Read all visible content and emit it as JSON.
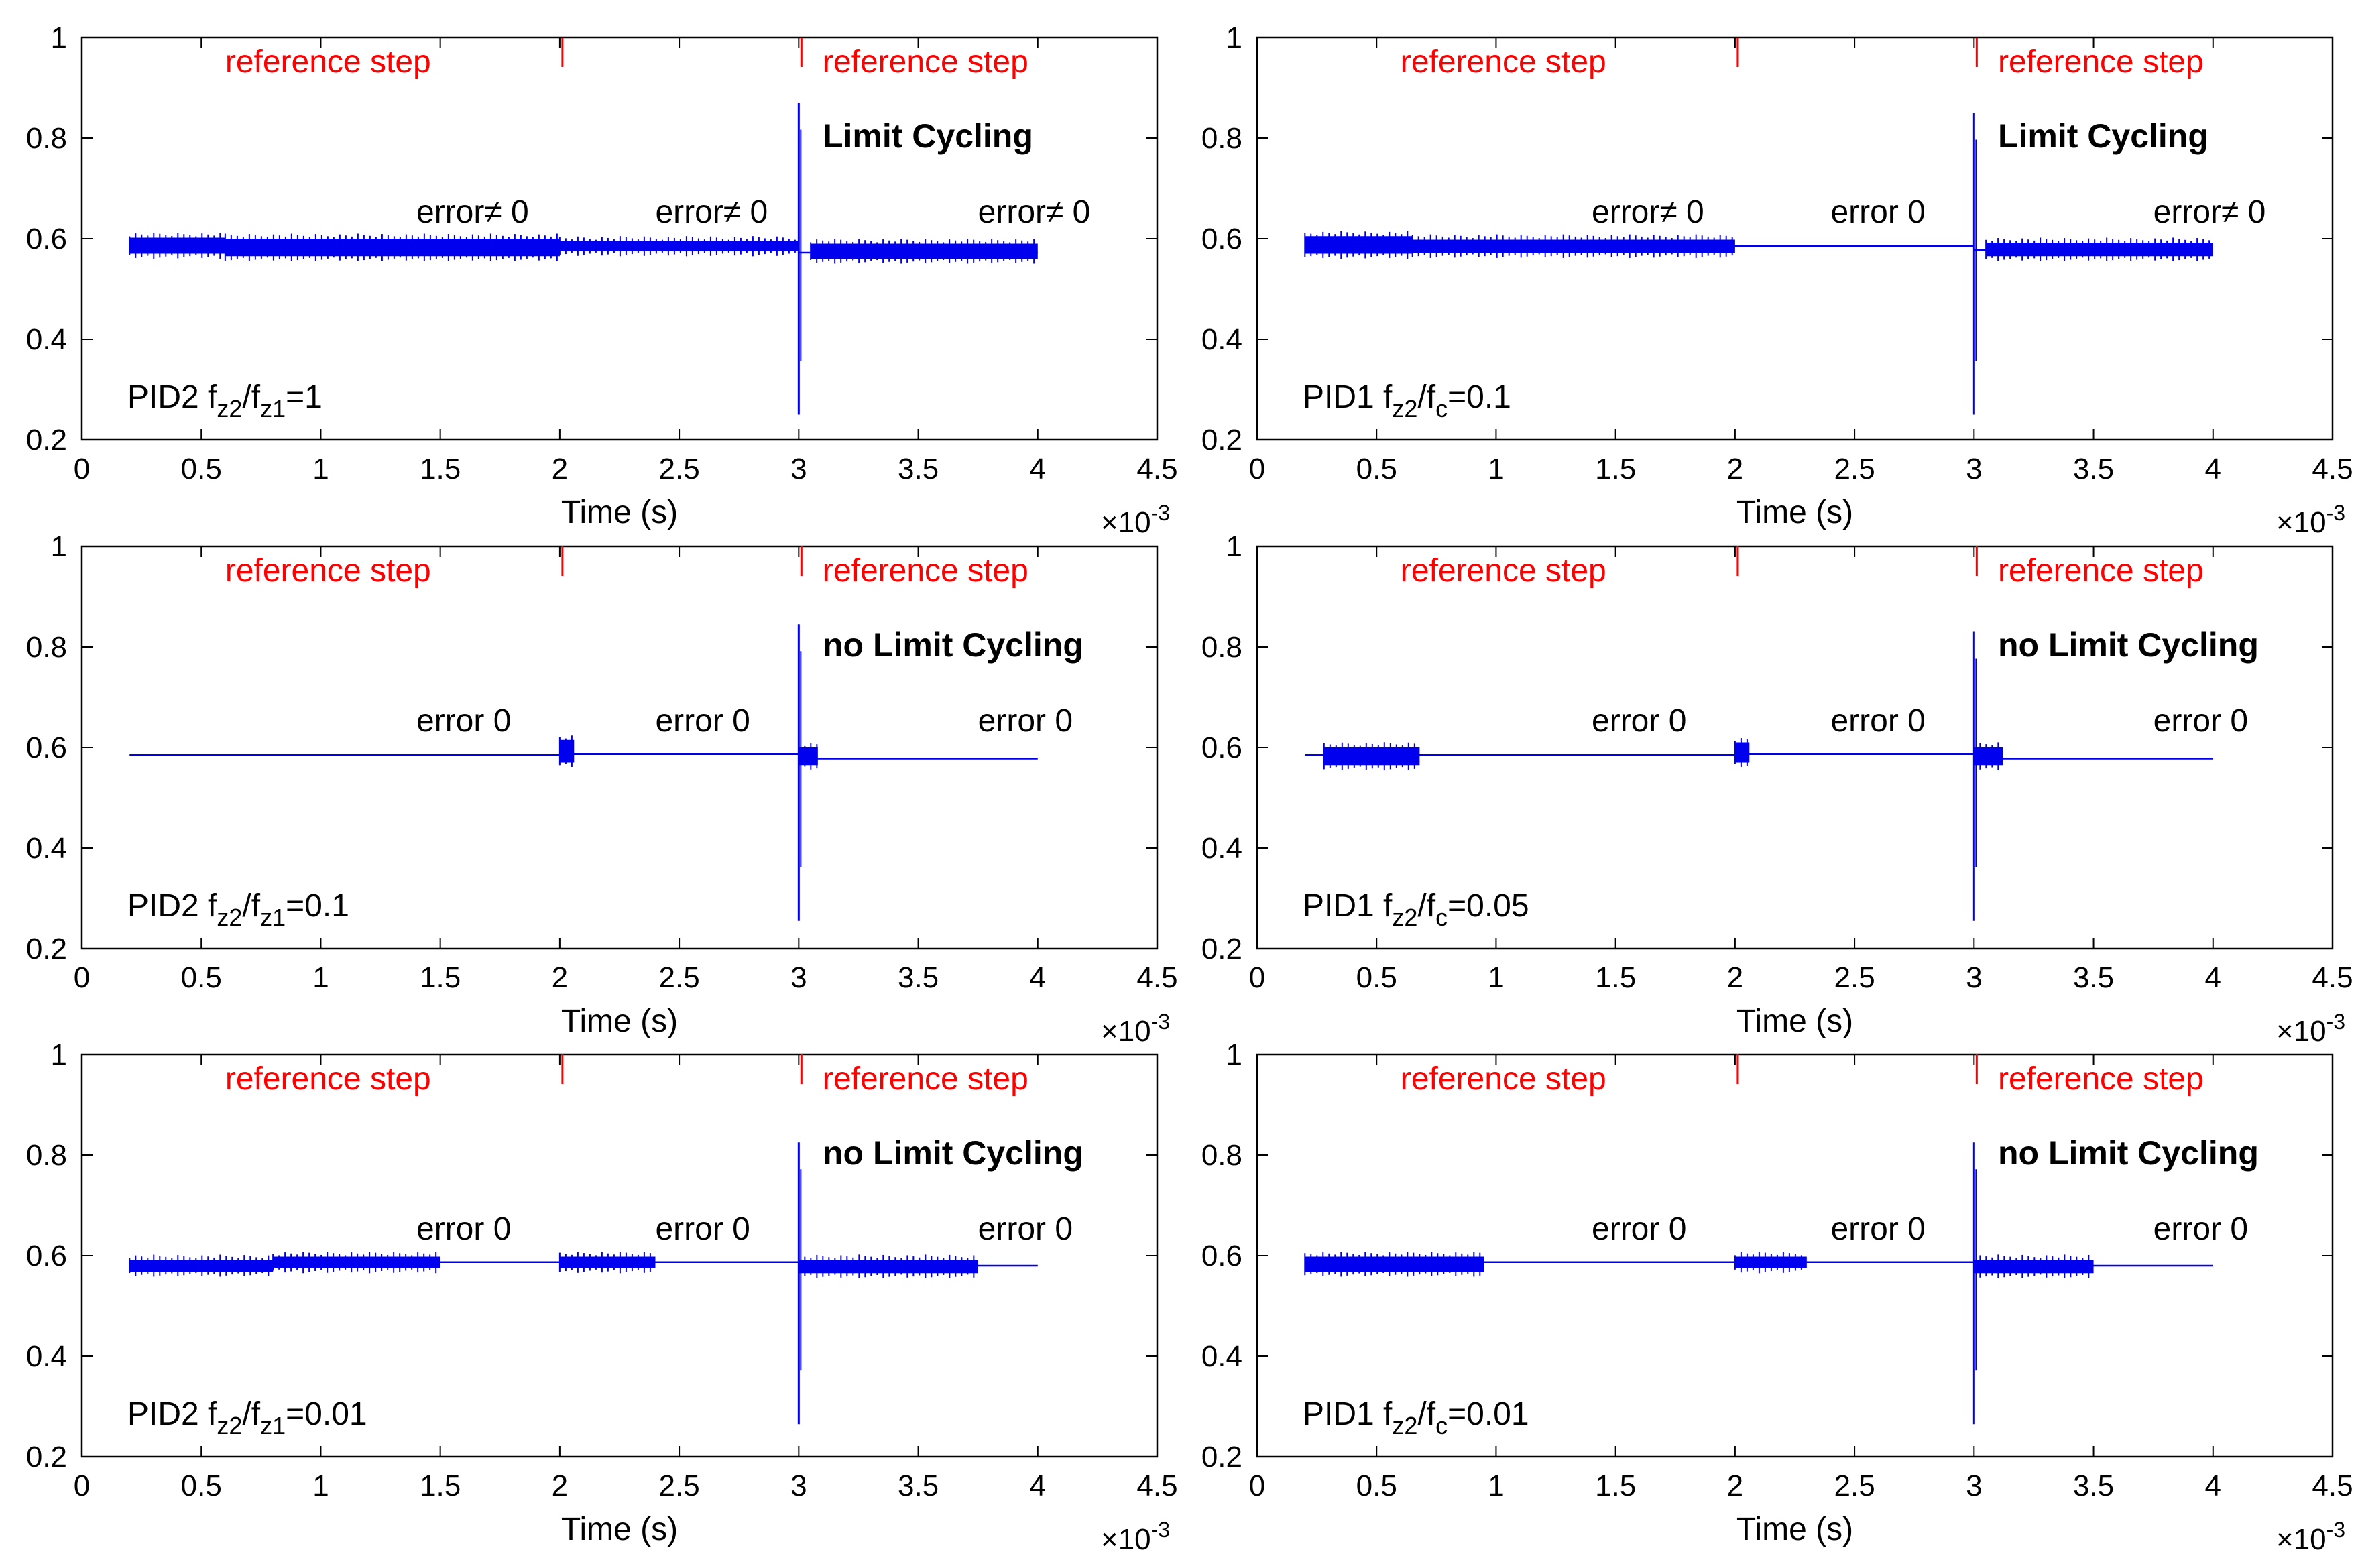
{
  "chart_data": [
    {
      "type": "line",
      "label": {
        "prefix": "PID2 f",
        "sub1": "z2",
        "mid": "/f",
        "sub2": "z1",
        "suffix": "=1"
      },
      "x_range": [
        0.2,
        4.0
      ],
      "baseline": [
        0.585,
        0.585,
        0.572
      ],
      "band": [
        {
          "x": [
            0.2,
            0.6
          ],
          "lo": 0.57,
          "hi": 0.602
        },
        {
          "x": [
            0.6,
            2.0
          ],
          "lo": 0.565,
          "hi": 0.6
        },
        {
          "x": [
            2.0,
            3.0
          ],
          "lo": 0.575,
          "hi": 0.595
        },
        {
          "x": [
            3.05,
            4.0
          ],
          "lo": 0.56,
          "hi": 0.59
        }
      ],
      "spike": {
        "x": 3.0,
        "max": 0.87,
        "min": 0.25
      },
      "errors": [
        "error≠ 0",
        "error≠ 0",
        "error≠ 0"
      ],
      "cycling": "Limit Cycling"
    },
    {
      "type": "line",
      "label": {
        "prefix": "PID1 f",
        "sub1": "z2",
        "mid": "/f",
        "sub2": "c",
        "suffix": "=0.1"
      },
      "x_range": [
        0.2,
        4.0
      ],
      "baseline": [
        0.585,
        0.585,
        0.577
      ],
      "band": [
        {
          "x": [
            0.2,
            0.65
          ],
          "lo": 0.57,
          "hi": 0.605
        },
        {
          "x": [
            0.65,
            2.0
          ],
          "lo": 0.572,
          "hi": 0.598
        },
        {
          "x": [
            3.05,
            4.0
          ],
          "lo": 0.565,
          "hi": 0.592
        }
      ],
      "spike": {
        "x": 3.0,
        "max": 0.85,
        "min": 0.25
      },
      "errors": [
        "error≠ 0",
        "error 0",
        "error≠ 0"
      ],
      "cycling": "Limit Cycling"
    },
    {
      "type": "line",
      "label": {
        "prefix": "PID2 f",
        "sub1": "z2",
        "mid": "/f",
        "sub2": "z1",
        "suffix": "=0.1"
      },
      "x_range": [
        0.2,
        4.0
      ],
      "baseline": [
        0.585,
        0.587,
        0.578
      ],
      "band": [
        {
          "x": [
            2.0,
            2.06
          ],
          "lo": 0.57,
          "hi": 0.615
        },
        {
          "x": [
            3.0,
            3.08
          ],
          "lo": 0.565,
          "hi": 0.6
        }
      ],
      "spike": {
        "x": 3.0,
        "max": 0.845,
        "min": 0.255
      },
      "errors": [
        "error 0",
        "error 0",
        "error 0"
      ],
      "cycling": "no Limit Cycling"
    },
    {
      "type": "line",
      "label": {
        "prefix": "PID1 f",
        "sub1": "z2",
        "mid": "/f",
        "sub2": "c",
        "suffix": "=0.05"
      },
      "x_range": [
        0.2,
        4.0
      ],
      "baseline": [
        0.585,
        0.587,
        0.578
      ],
      "band": [
        {
          "x": [
            0.28,
            0.68
          ],
          "lo": 0.565,
          "hi": 0.6
        },
        {
          "x": [
            2.0,
            2.06
          ],
          "lo": 0.57,
          "hi": 0.61
        },
        {
          "x": [
            3.0,
            3.12
          ],
          "lo": 0.565,
          "hi": 0.6
        }
      ],
      "spike": {
        "x": 3.0,
        "max": 0.83,
        "min": 0.255
      },
      "errors": [
        "error 0",
        "error 0",
        "error 0"
      ],
      "cycling": "no Limit Cycling"
    },
    {
      "type": "line",
      "label": {
        "prefix": "PID2 f",
        "sub1": "z2",
        "mid": "/f",
        "sub2": "z1",
        "suffix": "=0.01"
      },
      "x_range": [
        0.2,
        4.0
      ],
      "baseline": [
        0.587,
        0.587,
        0.58
      ],
      "band": [
        {
          "x": [
            0.2,
            0.8
          ],
          "lo": 0.568,
          "hi": 0.592
        },
        {
          "x": [
            0.8,
            1.5
          ],
          "lo": 0.575,
          "hi": 0.598
        },
        {
          "x": [
            2.0,
            2.4
          ],
          "lo": 0.575,
          "hi": 0.598
        },
        {
          "x": [
            3.0,
            3.75
          ],
          "lo": 0.565,
          "hi": 0.592
        }
      ],
      "spike": {
        "x": 3.0,
        "max": 0.825,
        "min": 0.265
      },
      "errors": [
        "error 0",
        "error 0",
        "error 0"
      ],
      "cycling": "no Limit Cycling"
    },
    {
      "type": "line",
      "label": {
        "prefix": "PID1 f",
        "sub1": "z2",
        "mid": "/f",
        "sub2": "c",
        "suffix": "=0.01"
      },
      "x_range": [
        0.2,
        4.0
      ],
      "baseline": [
        0.587,
        0.587,
        0.58
      ],
      "band": [
        {
          "x": [
            0.2,
            0.95
          ],
          "lo": 0.568,
          "hi": 0.598
        },
        {
          "x": [
            2.0,
            2.3
          ],
          "lo": 0.575,
          "hi": 0.598
        },
        {
          "x": [
            3.0,
            3.5
          ],
          "lo": 0.565,
          "hi": 0.592
        }
      ],
      "spike": {
        "x": 3.0,
        "max": 0.825,
        "min": 0.265
      },
      "errors": [
        "error 0",
        "error 0",
        "error 0"
      ],
      "cycling": "no Limit Cycling"
    }
  ],
  "axes": {
    "xlabel": "Time (s)",
    "xlim": [
      0,
      4.5
    ],
    "ylim": [
      0.2,
      1.0
    ],
    "xticks": [
      0,
      0.5,
      1,
      1.5,
      2,
      2.5,
      3,
      3.5,
      4,
      4.5
    ],
    "xtick_labels": [
      "0",
      "0.5",
      "1",
      "1.5",
      "2",
      "2.5",
      "3",
      "3.5",
      "4",
      "4.5"
    ],
    "yticks": [
      0.2,
      0.4,
      0.6,
      0.8,
      1.0
    ],
    "ytick_labels": [
      "0.2",
      "0.4",
      "0.6",
      "0.8",
      "1"
    ],
    "x_exponent_base": "×10",
    "x_exponent_power": "-3"
  },
  "annotations": {
    "reference_step": "reference step",
    "reference_step_times": [
      2.0,
      3.0
    ]
  },
  "colors": {
    "series": "#0000ee",
    "reference": "#ff0000",
    "axis": "#000000"
  }
}
